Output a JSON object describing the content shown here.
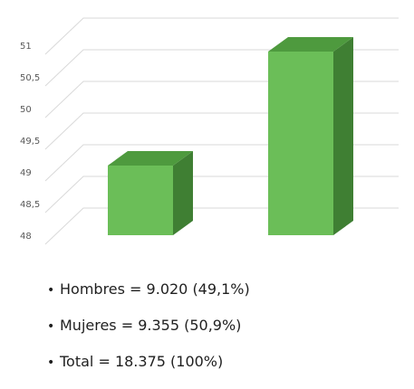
{
  "chart_data": {
    "type": "bar",
    "categories": [
      "Hombres",
      "Mujeres"
    ],
    "values": [
      49.1,
      50.9
    ],
    "ylim": [
      48,
      51
    ],
    "yticks": [
      48,
      48.5,
      49,
      49.5,
      50,
      50.5,
      51
    ],
    "ytick_labels": [
      "48",
      "48,5",
      "49",
      "49,5",
      "50",
      "50,5",
      "51"
    ],
    "grid": true,
    "style": "3d-column",
    "colors": {
      "front": "#6BBE58",
      "top": "#4E9A3E",
      "side": "#3F7F33",
      "grid": "#D9D9D9"
    }
  },
  "legend": {
    "bullet": "•",
    "items": [
      "Hombres = 9.020 (49,1%)",
      "Mujeres = 9.355 (50,9%)",
      "Total = 18.375 (100%)"
    ]
  }
}
